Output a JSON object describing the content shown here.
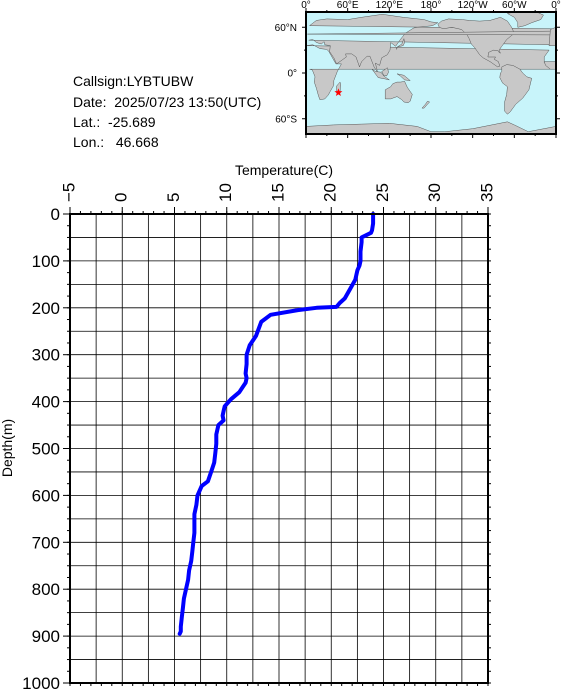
{
  "info": {
    "callsign_label": "Callsign:",
    "callsign": "LYBTUBW",
    "date_label": "Date:",
    "date": "2025/07/23 13:50(UTC)",
    "lat_label": "Lat.:",
    "lat": "-25.689",
    "lon_label": "Lon.:",
    "lon": "46.668"
  },
  "map": {
    "lon_labels": [
      "0°",
      "60°E",
      "120°E",
      "180°",
      "120°W",
      "60°W",
      "0°"
    ],
    "lat_labels": [
      "60°N",
      "0°",
      "60°S"
    ],
    "ocean_color": "#c8f4fa",
    "land_color": "#c8c8c8",
    "marker_color": "#ff0000",
    "marker_symbol": "star",
    "marker": {
      "lon": 46.668,
      "lat": -25.689
    }
  },
  "chart_data": {
    "type": "line",
    "xlabel": "Temperature(C)",
    "ylabel": "Depth(m)",
    "xlim": [
      -5,
      35
    ],
    "ylim": [
      0,
      1000
    ],
    "y_inverted": true,
    "x_axis_position": "top",
    "x_ticks": [
      "-5",
      "0",
      "5",
      "10",
      "15",
      "20",
      "25",
      "30",
      "35"
    ],
    "y_ticks": [
      "0",
      "100",
      "200",
      "300",
      "400",
      "500",
      "600",
      "700",
      "800",
      "900",
      "1000"
    ],
    "grid": true,
    "series": [
      {
        "color": "#0000ff",
        "temperature": [
          24.0,
          24.0,
          23.9,
          23.8,
          22.9,
          22.9,
          22.8,
          22.8,
          22.7,
          22.5,
          22.3,
          21.8,
          21.3,
          20.8,
          20.5,
          18.6,
          16.8,
          14.2,
          13.3,
          12.8,
          12.2,
          11.9,
          11.9,
          11.8,
          11.9,
          11.8,
          11.5,
          11.2,
          10.4,
          9.8,
          9.7,
          9.6,
          9.7,
          9.2,
          9.0,
          9.0,
          8.9,
          8.8,
          8.5,
          8.2,
          7.6,
          7.2,
          7.1,
          6.9,
          6.9,
          6.9,
          6.8,
          6.7,
          6.6,
          6.4,
          6.3,
          6.1,
          5.9,
          5.8,
          5.7,
          5.6,
          5.6,
          5.5
        ],
        "depth": [
          0,
          20,
          35,
          40,
          50,
          60,
          80,
          100,
          110,
          120,
          140,
          160,
          180,
          190,
          198,
          200,
          205,
          215,
          230,
          260,
          280,
          300,
          320,
          340,
          350,
          360,
          370,
          380,
          395,
          410,
          420,
          430,
          440,
          450,
          470,
          490,
          510,
          530,
          550,
          570,
          580,
          600,
          620,
          640,
          660,
          680,
          700,
          720,
          740,
          760,
          780,
          800,
          820,
          840,
          860,
          880,
          890,
          895
        ]
      }
    ]
  }
}
